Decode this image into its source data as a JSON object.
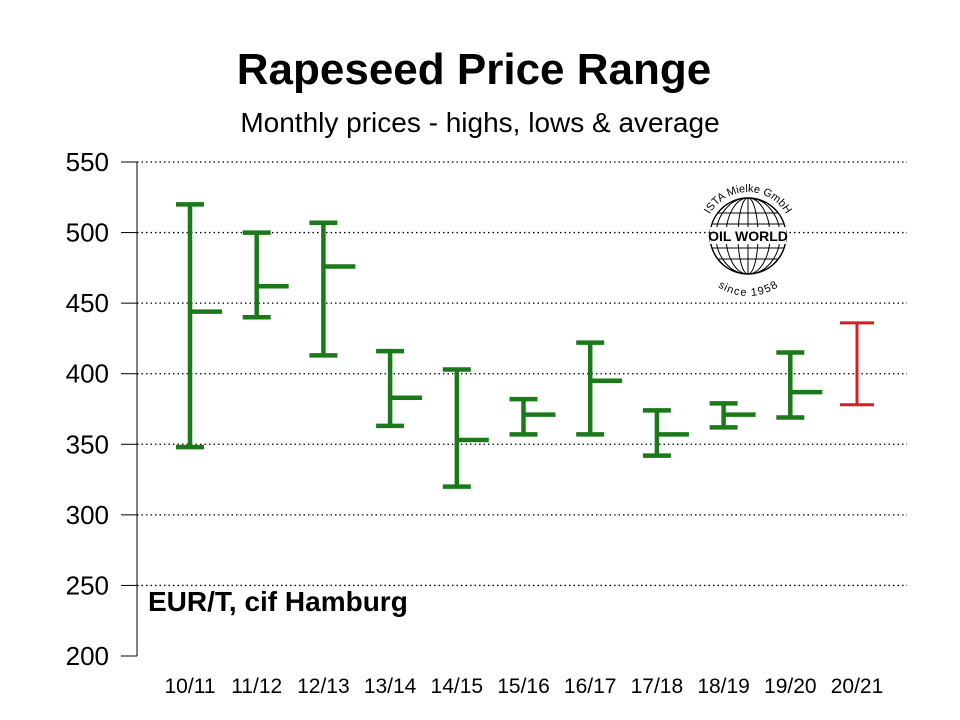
{
  "chart_data": {
    "type": "range",
    "title": "Rapeseed Price Range",
    "subtitle": "Monthly prices - highs, lows & average",
    "unit_label": "EUR/T, cif Hamburg",
    "ylim": [
      200,
      550
    ],
    "yticks": [
      200,
      250,
      300,
      350,
      400,
      450,
      500,
      550
    ],
    "grid": true,
    "categories": [
      "10/11",
      "11/12",
      "12/13",
      "13/14",
      "14/15",
      "15/16",
      "16/17",
      "17/18",
      "18/19",
      "19/20",
      "20/21"
    ],
    "high": [
      520,
      500,
      507,
      416,
      403,
      382,
      422,
      374,
      379,
      415,
      436
    ],
    "low": [
      348,
      440,
      413,
      363,
      320,
      357,
      357,
      342,
      362,
      369,
      378
    ],
    "average": [
      444,
      462,
      476,
      383,
      353,
      371,
      395,
      357,
      371,
      387,
      null
    ],
    "colors": [
      "#1a7a1a",
      "#1a7a1a",
      "#1a7a1a",
      "#1a7a1a",
      "#1a7a1a",
      "#1a7a1a",
      "#1a7a1a",
      "#1a7a1a",
      "#1a7a1a",
      "#1a7a1a",
      "#d42020"
    ],
    "logo": {
      "top_text": "ISTA Mielke GmbH",
      "center_text": "OIL WORLD",
      "bottom_text": "since 1958"
    }
  }
}
